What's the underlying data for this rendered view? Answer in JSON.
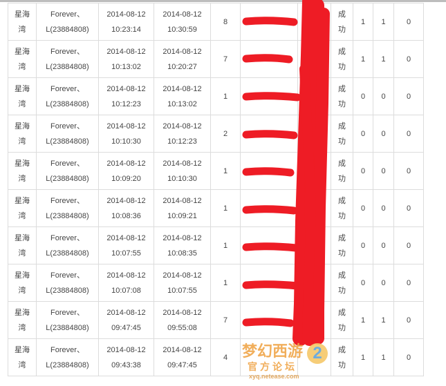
{
  "rows": [
    {
      "server": "星海\n湾",
      "player": "Forever、\nL(23884808)",
      "start": "2014-08-12\n10:23:14",
      "end": "2014-08-12\n10:30:59",
      "count": "8",
      "status": "成\n功",
      "a": "1",
      "b": "1",
      "c": "0"
    },
    {
      "server": "星海\n湾",
      "player": "Forever、\nL(23884808)",
      "start": "2014-08-12\n10:13:02",
      "end": "2014-08-12\n10:20:27",
      "count": "7",
      "status": "成\n功",
      "a": "1",
      "b": "1",
      "c": "0"
    },
    {
      "server": "星海\n湾",
      "player": "Forever、\nL(23884808)",
      "start": "2014-08-12\n10:12:23",
      "end": "2014-08-12\n10:13:02",
      "count": "1",
      "status": "成\n功",
      "a": "0",
      "b": "0",
      "c": "0"
    },
    {
      "server": "星海\n湾",
      "player": "Forever、\nL(23884808)",
      "start": "2014-08-12\n10:10:30",
      "end": "2014-08-12\n10:12:23",
      "count": "2",
      "status": "成\n功",
      "a": "0",
      "b": "0",
      "c": "0"
    },
    {
      "server": "星海\n湾",
      "player": "Forever、\nL(23884808)",
      "start": "2014-08-12\n10:09:20",
      "end": "2014-08-12\n10:10:30",
      "count": "1",
      "status": "成\n功",
      "a": "0",
      "b": "0",
      "c": "0"
    },
    {
      "server": "星海\n湾",
      "player": "Forever、\nL(23884808)",
      "start": "2014-08-12\n10:08:36",
      "end": "2014-08-12\n10:09:21",
      "count": "1",
      "status": "成\n功",
      "a": "0",
      "b": "0",
      "c": "0"
    },
    {
      "server": "星海\n湾",
      "player": "Forever、\nL(23884808)",
      "start": "2014-08-12\n10:07:55",
      "end": "2014-08-12\n10:08:35",
      "count": "1",
      "status": "成\n功",
      "a": "0",
      "b": "0",
      "c": "0"
    },
    {
      "server": "星海\n湾",
      "player": "Forever、\nL(23884808)",
      "start": "2014-08-12\n10:07:08",
      "end": "2014-08-12\n10:07:55",
      "count": "1",
      "status": "成\n功",
      "a": "0",
      "b": "0",
      "c": "0"
    },
    {
      "server": "星海\n湾",
      "player": "Forever、\nL(23884808)",
      "start": "2014-08-12\n09:47:45",
      "end": "2014-08-12\n09:55:08",
      "count": "7",
      "status": "成\n功",
      "a": "1",
      "b": "1",
      "c": "0"
    },
    {
      "server": "星海\n湾",
      "player": "Forever、\nL(23884808)",
      "start": "2014-08-12\n09:43:38",
      "end": "2014-08-12\n09:47:45",
      "count": "4",
      "status": "成\n功",
      "a": "1",
      "b": "1",
      "c": "0"
    }
  ],
  "redaction_color": "#ee1c25",
  "watermark": {
    "title": "梦幻西游",
    "number": "2",
    "subtitle": "官方论坛",
    "url": "xyq.netease.com"
  }
}
